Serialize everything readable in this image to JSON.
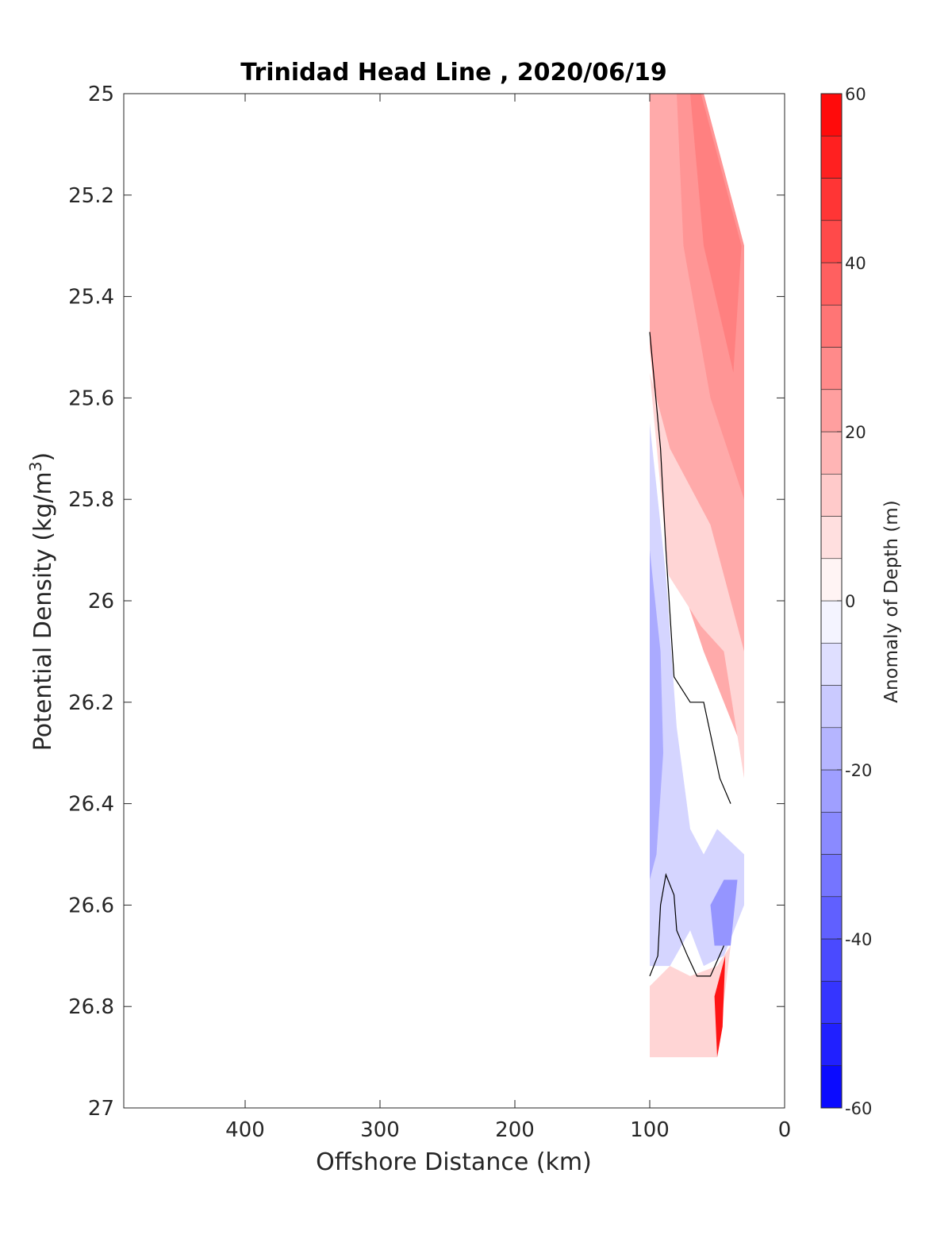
{
  "chart_data": {
    "type": "contour",
    "title": "Trinidad Head Line , 2020/06/19",
    "xlabel": "Offshore Distance (km)",
    "ylabel_main": "Potential Density (kg/m",
    "ylabel_sup": "3",
    "ylabel_close": ")",
    "xlim": [
      490,
      0
    ],
    "ylim": [
      25,
      27
    ],
    "y_reversed": true,
    "x_ticks": [
      400,
      300,
      200,
      100,
      0
    ],
    "y_ticks": [
      25,
      25.2,
      25.4,
      25.6,
      25.8,
      26,
      26.2,
      26.4,
      26.6,
      26.8,
      27
    ],
    "y_tick_labels": [
      "25",
      "25.2",
      "25.4",
      "25.6",
      "25.8",
      "26",
      "26.2",
      "26.4",
      "26.6",
      "26.8",
      "27"
    ],
    "colorbar": {
      "label": "Anomaly of Depth (m)",
      "range": [
        -60,
        60
      ],
      "step": 5,
      "ticks": [
        -60,
        -40,
        -20,
        0,
        20,
        40,
        60
      ],
      "tick_labels": [
        "-60",
        "-40",
        "-20",
        "0",
        "20",
        "40",
        "60"
      ],
      "neg_color": "#0000ff",
      "pos_color": "#ff0000",
      "mid_color": "#ffffff"
    },
    "regions": [
      {
        "name": "shallow-positive",
        "value": 20,
        "poly": [
          [
            100,
            25
          ],
          [
            60,
            25
          ],
          [
            30,
            25.3
          ],
          [
            30,
            26.3
          ],
          [
            60,
            26.1
          ],
          [
            85,
            25.9
          ],
          [
            100,
            25.5
          ]
        ]
      },
      {
        "name": "core-positive-1",
        "value": 25,
        "poly": [
          [
            80,
            25
          ],
          [
            60,
            25
          ],
          [
            30,
            25.3
          ],
          [
            30,
            25.8
          ],
          [
            55,
            25.6
          ],
          [
            75,
            25.3
          ]
        ]
      },
      {
        "name": "core-positive-2",
        "value": 30,
        "poly": [
          [
            70,
            25
          ],
          [
            62,
            25
          ],
          [
            32,
            25.3
          ],
          [
            38,
            25.55
          ],
          [
            60,
            25.3
          ]
        ]
      },
      {
        "name": "weak-positive",
        "value": 10,
        "poly": [
          [
            100,
            25.55
          ],
          [
            86,
            25.95
          ],
          [
            62,
            26.05
          ],
          [
            45,
            26.1
          ],
          [
            30,
            26.35
          ],
          [
            30,
            26.1
          ],
          [
            55,
            25.85
          ],
          [
            85,
            25.7
          ]
        ]
      },
      {
        "name": "negative-main",
        "value": -10,
        "poly": [
          [
            100,
            25.65
          ],
          [
            88,
            25.95
          ],
          [
            80,
            26.25
          ],
          [
            70,
            26.45
          ],
          [
            60,
            26.5
          ],
          [
            50,
            26.45
          ],
          [
            30,
            26.5
          ],
          [
            30,
            26.6
          ],
          [
            45,
            26.7
          ],
          [
            60,
            26.72
          ],
          [
            70,
            26.65
          ],
          [
            85,
            26.72
          ],
          [
            100,
            26.72
          ]
        ]
      },
      {
        "name": "negative-core",
        "value": -20,
        "poly": [
          [
            100,
            25.9
          ],
          [
            92,
            26.1
          ],
          [
            90,
            26.3
          ],
          [
            95,
            26.5
          ],
          [
            100,
            26.55
          ]
        ]
      },
      {
        "name": "negative-pocket",
        "value": -25,
        "poly": [
          [
            55,
            26.6
          ],
          [
            45,
            26.55
          ],
          [
            35,
            26.55
          ],
          [
            40,
            26.68
          ],
          [
            52,
            26.68
          ]
        ]
      },
      {
        "name": "deep-positive",
        "value": 10,
        "poly": [
          [
            100,
            26.76
          ],
          [
            85,
            26.72
          ],
          [
            70,
            26.74
          ],
          [
            50,
            26.72
          ],
          [
            40,
            26.68
          ],
          [
            50,
            26.9
          ],
          [
            100,
            26.9
          ]
        ]
      },
      {
        "name": "deep-positive-core",
        "value": 55,
        "poly": [
          [
            52,
            26.78
          ],
          [
            44,
            26.7
          ],
          [
            46,
            26.84
          ],
          [
            50,
            26.9
          ]
        ]
      }
    ],
    "zero_contours": [
      [
        [
          100,
          25.47
        ],
        [
          92,
          25.7
        ],
        [
          88,
          25.9
        ],
        [
          82,
          26.15
        ],
        [
          70,
          26.2
        ],
        [
          60,
          26.2
        ],
        [
          48,
          26.35
        ],
        [
          40,
          26.4
        ]
      ],
      [
        [
          100,
          26.74
        ],
        [
          94,
          26.7
        ],
        [
          92,
          26.6
        ],
        [
          88,
          26.54
        ],
        [
          82,
          26.58
        ],
        [
          80,
          26.65
        ],
        [
          72,
          26.7
        ],
        [
          65,
          26.74
        ],
        [
          55,
          26.74
        ],
        [
          45,
          26.68
        ]
      ]
    ]
  }
}
